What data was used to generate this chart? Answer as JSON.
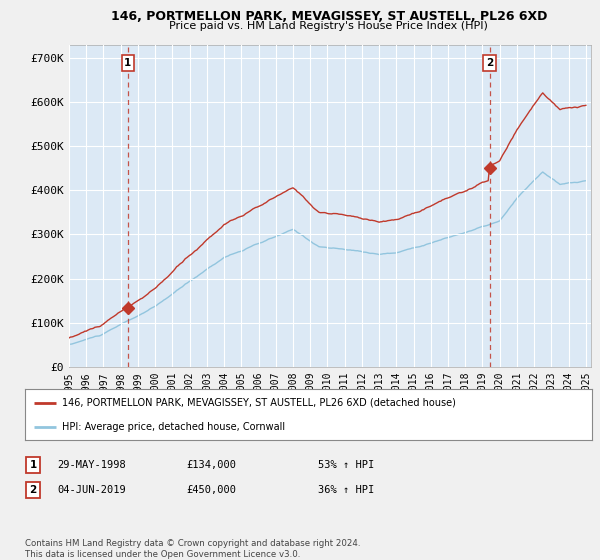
{
  "title": "146, PORTMELLON PARK, MEVAGISSEY, ST AUSTELL, PL26 6XD",
  "subtitle": "Price paid vs. HM Land Registry's House Price Index (HPI)",
  "ylim": [
    0,
    730000
  ],
  "yticks": [
    0,
    100000,
    200000,
    300000,
    400000,
    500000,
    600000,
    700000
  ],
  "ytick_labels": [
    "£0",
    "£100K",
    "£200K",
    "£300K",
    "£400K",
    "£500K",
    "£600K",
    "£700K"
  ],
  "hpi_color": "#92c5de",
  "price_color": "#c0392b",
  "sale1_year": 1998.42,
  "sale1_price": 134000,
  "sale2_year": 2019.42,
  "sale2_price": 450000,
  "legend_label1": "146, PORTMELLON PARK, MEVAGISSEY, ST AUSTELL, PL26 6XD (detached house)",
  "legend_label2": "HPI: Average price, detached house, Cornwall",
  "table_row1": [
    "1",
    "29-MAY-1998",
    "£134,000",
    "53% ↑ HPI"
  ],
  "table_row2": [
    "2",
    "04-JUN-2019",
    "£450,000",
    "36% ↑ HPI"
  ],
  "footer": "Contains HM Land Registry data © Crown copyright and database right 2024.\nThis data is licensed under the Open Government Licence v3.0.",
  "bg_color": "#f0f0f0",
  "plot_bg_color": "#dce9f5",
  "grid_color": "#ffffff",
  "vline_color": "#c0392b"
}
